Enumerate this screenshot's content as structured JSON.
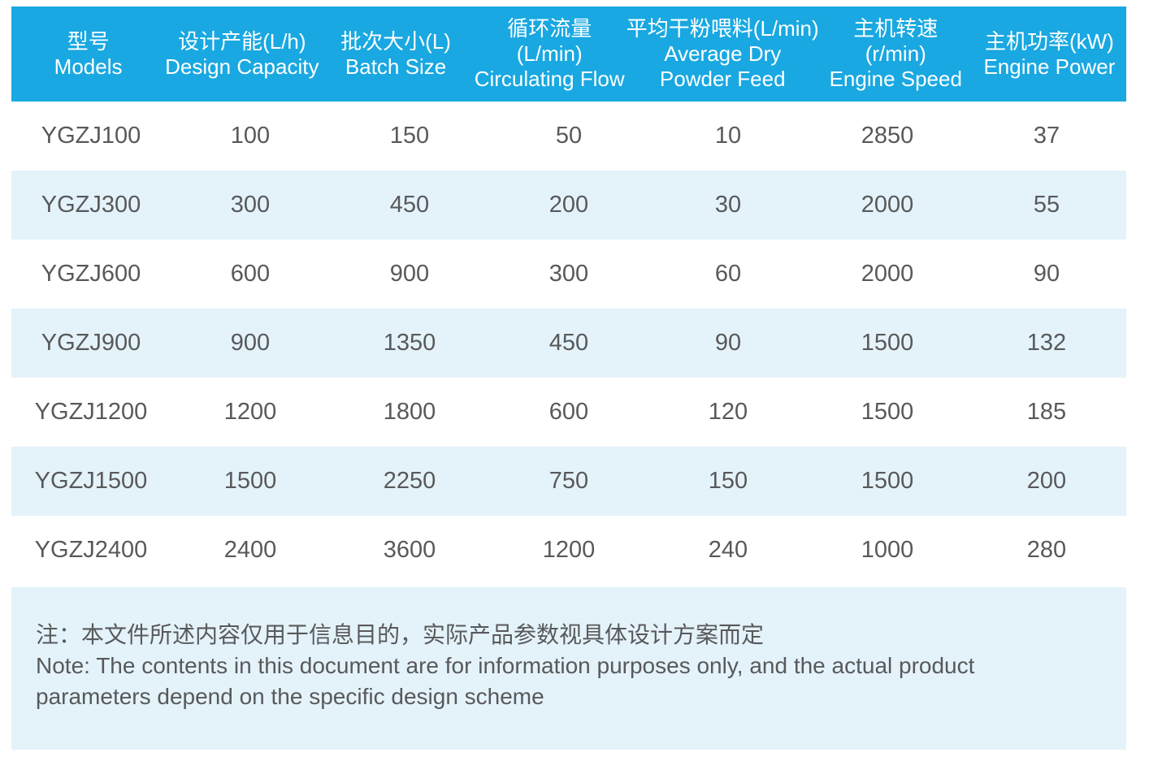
{
  "table": {
    "columns": [
      {
        "id": "models",
        "lines": [
          "型号",
          "Models"
        ]
      },
      {
        "id": "design_capacity",
        "lines": [
          "设计产能(L/h)",
          "Design Capacity"
        ]
      },
      {
        "id": "batch_size",
        "lines": [
          "批次大小(L)",
          "Batch Size"
        ]
      },
      {
        "id": "circulating_flow",
        "lines": [
          "循环流量",
          "(L/min)",
          "Circulating Flow"
        ]
      },
      {
        "id": "avg_dry_powder",
        "lines": [
          "平均干粉喂料(L/min)",
          "Average Dry",
          "Powder Feed"
        ]
      },
      {
        "id": "engine_speed",
        "lines": [
          "主机转速",
          "(r/min)",
          "Engine Speed"
        ]
      },
      {
        "id": "engine_power",
        "lines": [
          "主机功率(kW)",
          "Engine Power"
        ]
      }
    ],
    "rows": [
      [
        "YGZJ100",
        "100",
        "150",
        "50",
        "10",
        "2850",
        "37"
      ],
      [
        "YGZJ300",
        "300",
        "450",
        "200",
        "30",
        "2000",
        "55"
      ],
      [
        "YGZJ600",
        "600",
        "900",
        "300",
        "60",
        "2000",
        "90"
      ],
      [
        "YGZJ900",
        "900",
        "1350",
        "450",
        "90",
        "1500",
        "132"
      ],
      [
        "YGZJ1200",
        "1200",
        "1800",
        "600",
        "120",
        "1500",
        "185"
      ],
      [
        "YGZJ1500",
        "1500",
        "2250",
        "750",
        "150",
        "1500",
        "200"
      ],
      [
        "YGZJ2400",
        "2400",
        "3600",
        "1200",
        "240",
        "1000",
        "280"
      ]
    ]
  },
  "note": {
    "lines": [
      "注：本文件所述内容仅用于信息目的，实际产品参数视具体设计方案而定",
      "Note: The contents in this document are for information purposes only, and the actual product",
      "parameters depend on the specific design scheme"
    ]
  },
  "colors": {
    "header_bg": "#19A8E1",
    "stripe_bg": "#E4F3FA",
    "note_bg": "#E4F3FA",
    "header_text": "#FFFFFF",
    "body_text": "#58595B"
  }
}
